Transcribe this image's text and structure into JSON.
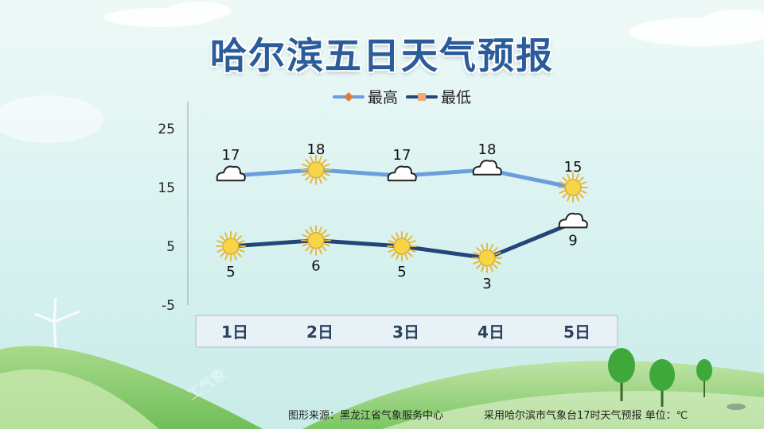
{
  "title": "哈尔滨五日天气预报",
  "footer": {
    "source": "图形来源：黑龙江省气象服务中心",
    "note": "采用哈尔滨市气象台17时天气预报 单位：℃"
  },
  "watermark": "工气象",
  "chart_data": {
    "type": "line",
    "categories": [
      "1日",
      "2日",
      "3日",
      "4日",
      "5日"
    ],
    "series": [
      {
        "name": "最高",
        "values": [
          17,
          18,
          17,
          18,
          15
        ],
        "color": "#6a9edc",
        "marker_color": "#e07b39",
        "icons": [
          "cloud",
          "sun",
          "cloud",
          "cloud",
          "sun"
        ]
      },
      {
        "name": "最低",
        "values": [
          5,
          6,
          5,
          3,
          9
        ],
        "color": "#23457a",
        "marker_color": "#f0a878",
        "icons": [
          "sun",
          "sun",
          "sun",
          "sun",
          "cloud"
        ]
      }
    ],
    "yticks": [
      25,
      15,
      5,
      -5
    ],
    "ylim": [
      -5,
      25
    ],
    "legend_position": "top",
    "grid": false
  }
}
